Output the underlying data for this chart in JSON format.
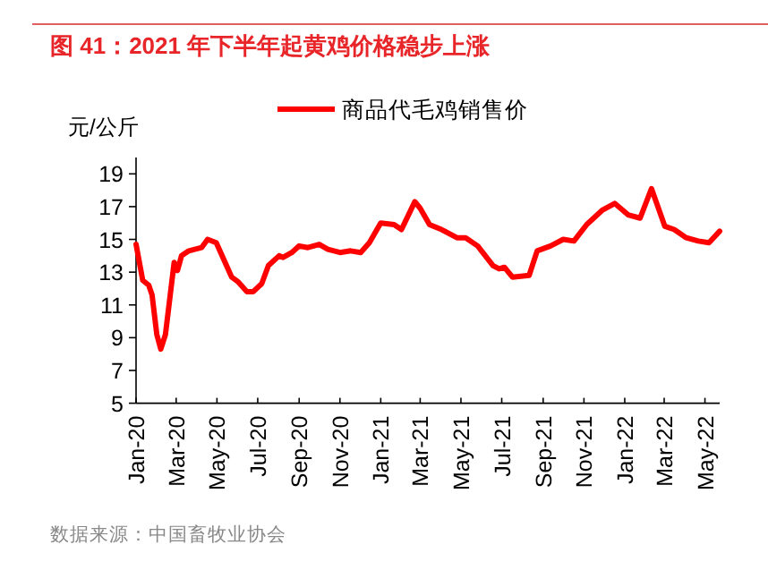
{
  "chart_data": {
    "type": "line",
    "title": "图 41：2021 年下半年起黄鸡价格稳步上涨",
    "ylabel": "元/公斤",
    "legend": "top",
    "grid": false,
    "annotations": [
      "数据来源：中国畜牧业协会"
    ],
    "x": [
      "2020-01-01",
      "2020-01-11",
      "2020-01-20",
      "2020-01-25",
      "2020-02-01",
      "2020-02-07",
      "2020-02-14",
      "2020-02-27",
      "2020-03-03",
      "2020-03-09",
      "2020-03-20",
      "2020-04-08",
      "2020-04-17",
      "2020-04-30",
      "2020-05-23",
      "2020-06-02",
      "2020-06-15",
      "2020-06-24",
      "2020-07-07",
      "2020-07-17",
      "2020-08-02",
      "2020-08-08",
      "2020-08-21",
      "2020-09-01",
      "2020-09-14",
      "2020-10-01",
      "2020-10-14",
      "2020-11-01",
      "2020-11-17",
      "2020-12-02",
      "2020-12-15",
      "2021-01-01",
      "2021-01-21",
      "2021-02-01",
      "2021-02-21",
      "2021-03-01",
      "2021-03-15",
      "2021-04-02",
      "2021-04-25",
      "2021-05-08",
      "2021-05-26",
      "2021-06-18",
      "2021-06-27",
      "2021-07-05",
      "2021-07-17",
      "2021-08-11",
      "2021-08-23",
      "2021-09-12",
      "2021-10-01",
      "2021-10-17",
      "2021-11-05",
      "2021-11-29",
      "2021-12-17",
      "2022-01-06",
      "2022-01-24",
      "2022-02-10",
      "2022-03-02",
      "2022-03-16",
      "2022-04-03",
      "2022-04-21",
      "2022-05-07",
      "2022-05-23"
    ],
    "series": [
      {
        "name": "商品代毛鸡销售价",
        "color": "#ff0000",
        "values": [
          14.7,
          12.5,
          12.2,
          11.6,
          9.2,
          8.3,
          9.2,
          13.6,
          13.1,
          14.0,
          14.3,
          14.5,
          15.0,
          14.8,
          12.7,
          12.4,
          11.8,
          11.8,
          12.3,
          13.4,
          14.0,
          13.9,
          14.2,
          14.6,
          14.5,
          14.7,
          14.4,
          14.2,
          14.3,
          14.2,
          14.8,
          16.0,
          15.9,
          15.6,
          17.3,
          16.9,
          15.9,
          15.6,
          15.1,
          15.1,
          14.6,
          13.4,
          13.2,
          13.3,
          12.7,
          12.8,
          14.3,
          14.6,
          15.0,
          14.9,
          15.9,
          16.8,
          17.2,
          16.5,
          16.3,
          18.1,
          15.8,
          15.6,
          15.1,
          14.9,
          14.8,
          15.5
        ]
      }
    ],
    "marker": "none",
    "line_style": "solid",
    "xlim": [
      "2020-01-01",
      "2022-05-23"
    ],
    "xticks": [
      {
        "value": "2020-01-01",
        "label": "Jan-20"
      },
      {
        "value": "2020-03-01",
        "label": "Mar-20"
      },
      {
        "value": "2020-05-01",
        "label": "May-20"
      },
      {
        "value": "2020-07-01",
        "label": "Jul-20"
      },
      {
        "value": "2020-09-01",
        "label": "Sep-20"
      },
      {
        "value": "2020-11-01",
        "label": "Nov-20"
      },
      {
        "value": "2021-01-01",
        "label": "Jan-21"
      },
      {
        "value": "2021-03-01",
        "label": "Mar-21"
      },
      {
        "value": "2021-05-01",
        "label": "May-21"
      },
      {
        "value": "2021-07-01",
        "label": "Jul-21"
      },
      {
        "value": "2021-09-01",
        "label": "Sep-21"
      },
      {
        "value": "2021-11-01",
        "label": "Nov-21"
      },
      {
        "value": "2022-01-01",
        "label": "Jan-22"
      },
      {
        "value": "2022-03-01",
        "label": "Mar-22"
      },
      {
        "value": "2022-05-01",
        "label": "May-22"
      }
    ],
    "ylim": [
      5,
      20
    ],
    "yticks": [
      5,
      7,
      9,
      11,
      13,
      15,
      17,
      19
    ]
  }
}
